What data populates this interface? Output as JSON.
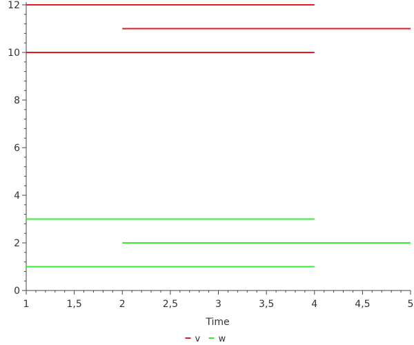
{
  "chart_data": {
    "type": "line",
    "title": "",
    "xlabel": "Time",
    "ylabel": "",
    "xlim": [
      1,
      5
    ],
    "ylim": [
      0,
      12
    ],
    "x_ticks": [
      1,
      1.5,
      2,
      2.5,
      3,
      3.5,
      4,
      4.5,
      5
    ],
    "x_tick_labels": [
      "1",
      "1,5",
      "2",
      "2,5",
      "3",
      "3,5",
      "4",
      "4,5",
      "5"
    ],
    "y_ticks": [
      0,
      2,
      4,
      6,
      8,
      10,
      12
    ],
    "y_tick_labels": [
      "0",
      "2",
      "4",
      "6",
      "8",
      "10",
      "12"
    ],
    "grid": false,
    "legend_position": "bottom-center",
    "series": [
      {
        "name": "v",
        "color": "#e31a1c",
        "segments": [
          {
            "x": [
              1,
              4
            ],
            "y": [
              12,
              12
            ]
          },
          {
            "x": [
              2,
              5
            ],
            "y": [
              11,
              11
            ]
          },
          {
            "x": [
              1,
              4
            ],
            "y": [
              10,
              10
            ]
          }
        ]
      },
      {
        "name": "w",
        "color": "#33ee33",
        "segments": [
          {
            "x": [
              1,
              4
            ],
            "y": [
              3,
              3
            ]
          },
          {
            "x": [
              2,
              5
            ],
            "y": [
              2,
              2
            ]
          },
          {
            "x": [
              1,
              4
            ],
            "y": [
              1,
              1
            ]
          }
        ]
      }
    ]
  }
}
